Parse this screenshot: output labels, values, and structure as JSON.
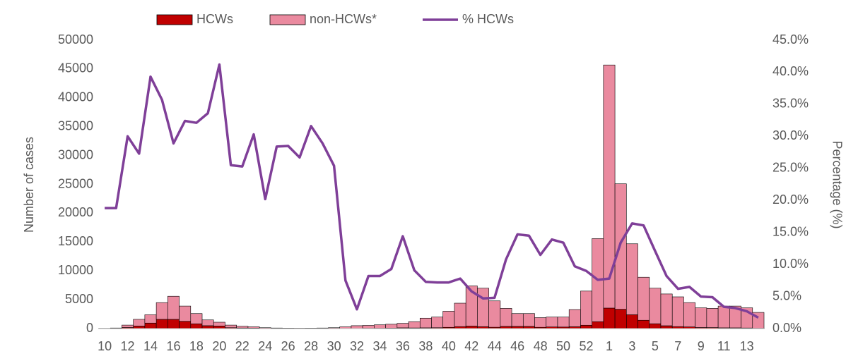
{
  "chart_data": {
    "type": "bar",
    "y_label": "Number of cases",
    "y2_label": "Percentage (%)",
    "categories": [
      "10",
      null,
      "12",
      null,
      "14",
      null,
      "16",
      null,
      "18",
      null,
      "20",
      null,
      "22",
      null,
      "24",
      null,
      "26",
      null,
      "28",
      null,
      "30",
      null,
      "32",
      null,
      "34",
      null,
      "36",
      null,
      "38",
      null,
      "40",
      null,
      "42",
      null,
      "44",
      null,
      "46",
      null,
      "48",
      null,
      "50",
      null,
      "52",
      null,
      "1",
      null,
      "3",
      null,
      "5",
      null,
      "7",
      null,
      "9",
      null,
      "11",
      null,
      "13",
      null
    ],
    "series": [
      {
        "name": "HCWs",
        "color": "#c00000",
        "stack": true,
        "values": [
          10,
          19,
          180,
          440,
          950,
          1600,
          1600,
          1260,
          830,
          500,
          450,
          150,
          100,
          90,
          30,
          30,
          23,
          19,
          25,
          29,
          38,
          22,
          15,
          45,
          53,
          69,
          130,
          110,
          130,
          145,
          215,
          340,
          430,
          330,
          230,
          380,
          380,
          375,
          220,
          280,
          265,
          320,
          580,
          1200,
          3550,
          3350,
          2400,
          1440,
          840,
          490,
          340,
          290,
          180,
          170,
          130,
          125,
          100,
          50
        ]
      },
      {
        "name": "non-HCWs*",
        "color": "#ea8a9f",
        "stack": true,
        "values": [
          40,
          81,
          420,
          1160,
          1450,
          2900,
          4000,
          2640,
          1770,
          1000,
          650,
          450,
          300,
          210,
          120,
          70,
          57,
          51,
          55,
          71,
          112,
          278,
          485,
          505,
          597,
          681,
          770,
          1090,
          1670,
          1855,
          2785,
          4060,
          6970,
          6670,
          4570,
          3120,
          2220,
          2225,
          1680,
          1720,
          1735,
          2980,
          5920,
          14400,
          42150,
          21750,
          12300,
          7460,
          6160,
          5510,
          5160,
          4210,
          3420,
          3330,
          3770,
          3775,
          3500,
          2750
        ]
      },
      {
        "name": "% HCWs",
        "color": "#7f3f98",
        "type": "line",
        "axis": "y2",
        "values": [
          18.8,
          18.8,
          30.0,
          27.3,
          39.3,
          35.7,
          28.9,
          32.4,
          32.1,
          33.6,
          41.2,
          25.5,
          25.3,
          30.3,
          20.2,
          28.4,
          28.5,
          26.7,
          31.6,
          28.9,
          25.4,
          7.5,
          3.0,
          8.2,
          8.2,
          9.3,
          14.4,
          9.1,
          7.3,
          7.2,
          7.2,
          7.8,
          5.8,
          4.7,
          4.8,
          10.8,
          14.7,
          14.5,
          11.5,
          13.9,
          13.4,
          9.7,
          9.0,
          7.6,
          7.8,
          13.4,
          16.4,
          16.1,
          12.1,
          8.2,
          6.2,
          6.5,
          5.0,
          4.9,
          3.4,
          3.2,
          2.7,
          1.7
        ]
      }
    ],
    "ylim": [
      0,
      50000
    ],
    "yticks": [
      0,
      5000,
      10000,
      15000,
      20000,
      25000,
      30000,
      35000,
      40000,
      45000,
      50000
    ],
    "y2lim": [
      0,
      45
    ],
    "y2ticks": [
      {
        "value": 0,
        "label": "0.0%"
      },
      {
        "value": 5,
        "label": "5.0%"
      },
      {
        "value": 10,
        "label": "10.0%"
      },
      {
        "value": 15,
        "label": "15.0%"
      },
      {
        "value": 20,
        "label": "20.0%"
      },
      {
        "value": 25,
        "label": "25.0%"
      },
      {
        "value": 30,
        "label": "30.0%"
      },
      {
        "value": 35,
        "label": "35.0%"
      },
      {
        "value": 40,
        "label": "40.0%"
      },
      {
        "value": 45,
        "label": "45.0%"
      }
    ],
    "grid": false,
    "legend": "top"
  }
}
